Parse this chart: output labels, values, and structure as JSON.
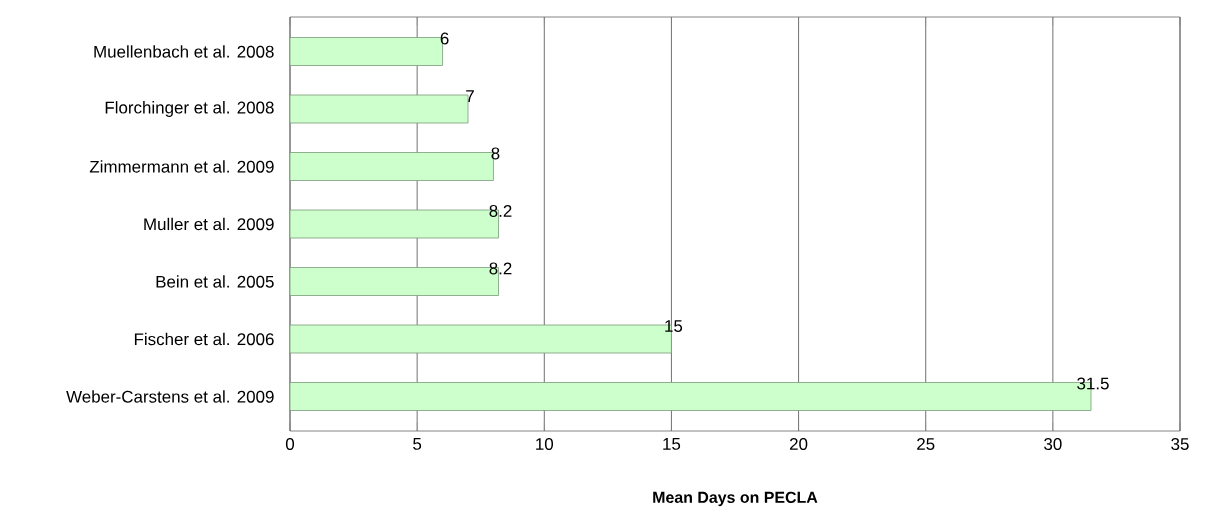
{
  "chart_data": {
    "type": "bar",
    "orientation": "horizontal",
    "xlabel": "**Mean Days on PECLA**",
    "categories": [
      "Muellenbach et al. 2008",
      "Florchinger et al. 2008",
      "Zimmermann et al. 2009",
      "Muller et al. 2009",
      "Bein et al. 2005",
      "Fischer et al. 2006",
      "Weber-Carstens et al. 2009"
    ],
    "values": [
      6,
      7,
      8,
      8.2,
      8.2,
      15,
      31.5
    ],
    "color": "#ccffcc",
    "xlim": [
      0,
      35
    ],
    "xticks": [
      0,
      5,
      10,
      15,
      20,
      25,
      30,
      35
    ],
    "grid": "x",
    "data_labels": true
  }
}
